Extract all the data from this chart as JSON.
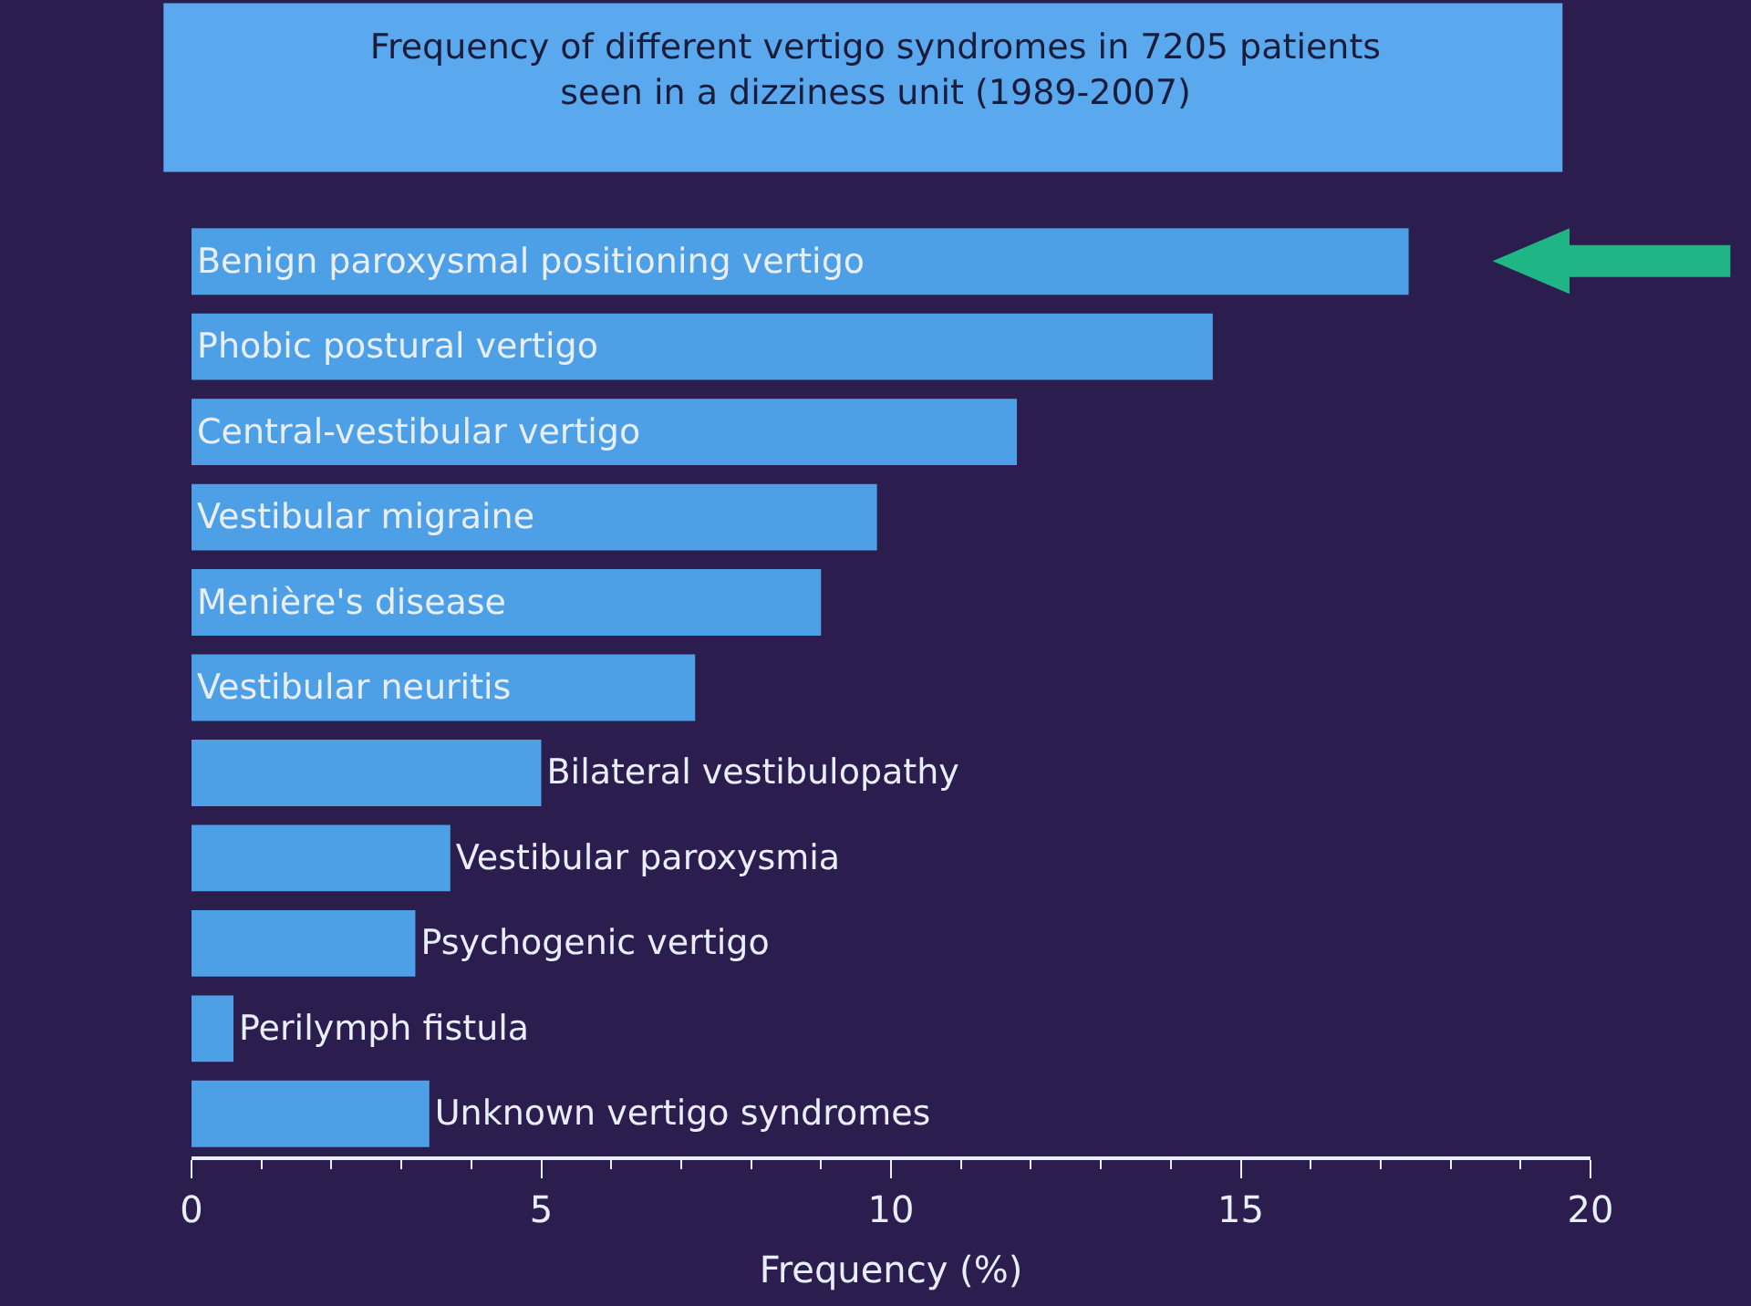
{
  "chart_data": {
    "type": "bar",
    "orientation": "horizontal",
    "title": "Frequency of different vertigo syndromes in 7205 patients\nseen in a dizziness unit (1989-2007)",
    "xlabel": "Frequency (%)",
    "categories": [
      "Benign paroxysmal positioning vertigo",
      "Phobic postural vertigo",
      "Central-vestibular vertigo",
      "Vestibular migraine",
      "Menière's disease",
      "Vestibular neuritis",
      "Bilateral vestibulopathy",
      "Vestibular paroxysmia",
      "Psychogenic vertigo",
      "Perilymph fistula",
      "Unknown vertigo syndromes"
    ],
    "values": [
      17.4,
      14.6,
      11.8,
      9.8,
      9.0,
      7.2,
      5.0,
      3.7,
      3.2,
      0.6,
      3.4
    ],
    "color": "#4d9fe6",
    "xlim": [
      0,
      20
    ],
    "xticks": [
      0,
      5,
      10,
      15,
      20
    ],
    "grid": false,
    "legend": false,
    "tick_labels": "x"
  }
}
